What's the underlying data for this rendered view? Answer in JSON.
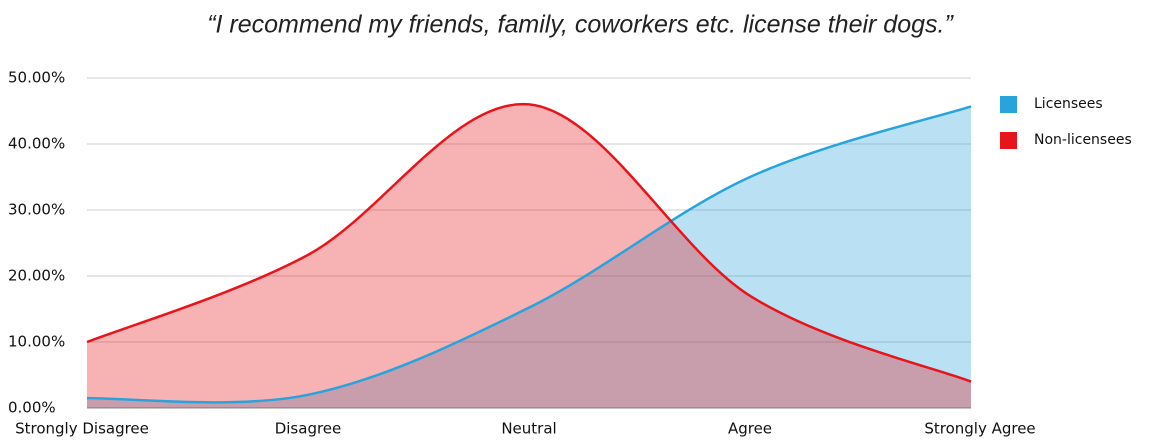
{
  "chart_data": {
    "type": "area",
    "title": "“I recommend my friends, family, coworkers etc. license their dogs.”",
    "categories": [
      "Strongly Disagree",
      "Disagree",
      "Neutral",
      "Agree",
      "Strongly Agree"
    ],
    "series": [
      {
        "name": "Licensees",
        "color": "#29a3dc",
        "values": [
          1.5,
          2,
          15.2,
          35,
          45.7
        ]
      },
      {
        "name": "Non-licensees",
        "color": "#e8141c",
        "values": [
          10,
          23.2,
          46,
          17,
          4
        ]
      }
    ],
    "ylim": [
      0,
      50
    ],
    "yticks": [
      {
        "value": 0,
        "label": "0.00%"
      },
      {
        "value": 10,
        "label": "10.00%"
      },
      {
        "value": 20,
        "label": "20.00%"
      },
      {
        "value": 30,
        "label": "30.00%"
      },
      {
        "value": 40,
        "label": "40.00%"
      },
      {
        "value": 50,
        "label": "50.00%"
      }
    ],
    "grid": true,
    "legend": "top-right"
  }
}
